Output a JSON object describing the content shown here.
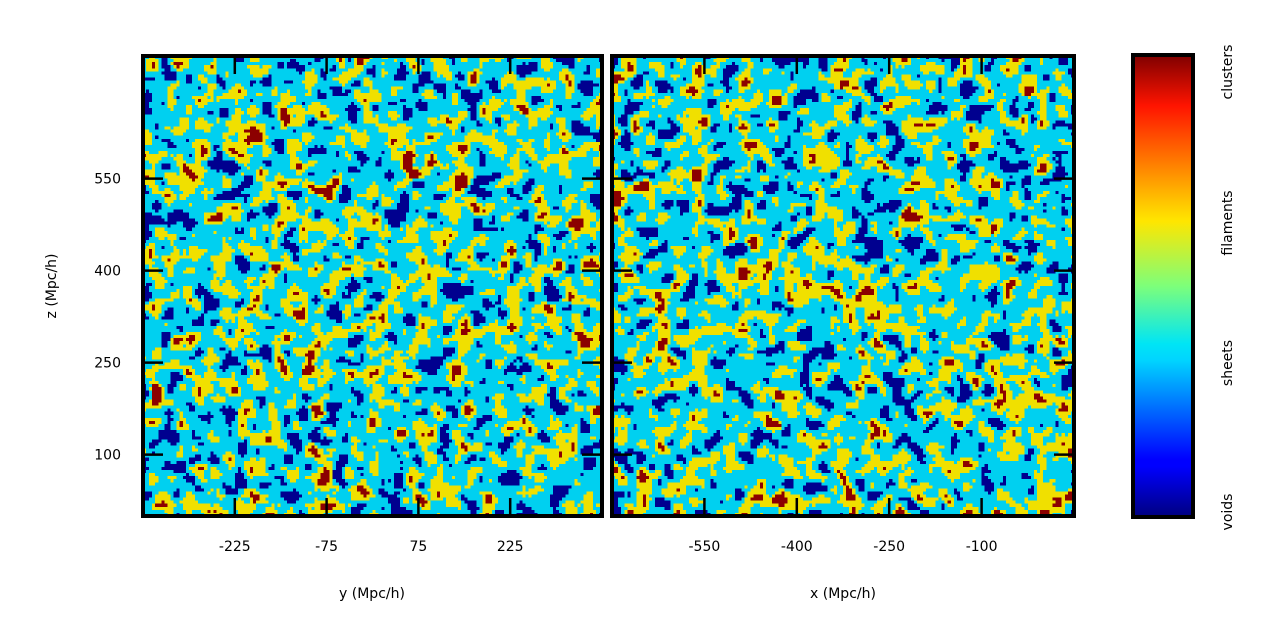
{
  "chart_data": [
    {
      "type": "heatmap",
      "panel": "left",
      "xlabel": "y (Mpc/h)",
      "ylabel": "z (Mpc/h)",
      "xticks": [
        -225,
        -75,
        75,
        225
      ],
      "yticks": [
        100,
        250,
        400,
        550
      ],
      "xlim": [
        -375,
        375
      ],
      "ylim": [
        0,
        750
      ],
      "categories": [
        "voids",
        "sheets",
        "filaments",
        "clusters"
      ],
      "category_colors": [
        "#00008f",
        "#00d0f0",
        "#f0e000",
        "#8c0000"
      ],
      "approx_fractions": {
        "voids": 0.12,
        "sheets": 0.56,
        "filaments": 0.29,
        "clusters": 0.03
      }
    },
    {
      "type": "heatmap",
      "panel": "right",
      "xlabel": "x (Mpc/h)",
      "ylabel": "",
      "xticks": [
        -550,
        -400,
        -250,
        -100
      ],
      "yticks": [
        100,
        250,
        400,
        550
      ],
      "xlim": [
        -700,
        50
      ],
      "ylim": [
        0,
        750
      ],
      "categories": [
        "voids",
        "sheets",
        "filaments",
        "clusters"
      ],
      "category_colors": [
        "#00008f",
        "#00d0f0",
        "#f0e000",
        "#8c0000"
      ],
      "approx_fractions": {
        "voids": 0.12,
        "sheets": 0.56,
        "filaments": 0.29,
        "clusters": 0.03
      }
    }
  ],
  "colorbar": {
    "colormap": "jet",
    "labels": [
      "clusters",
      "filaments",
      "sheets",
      "voids"
    ]
  }
}
